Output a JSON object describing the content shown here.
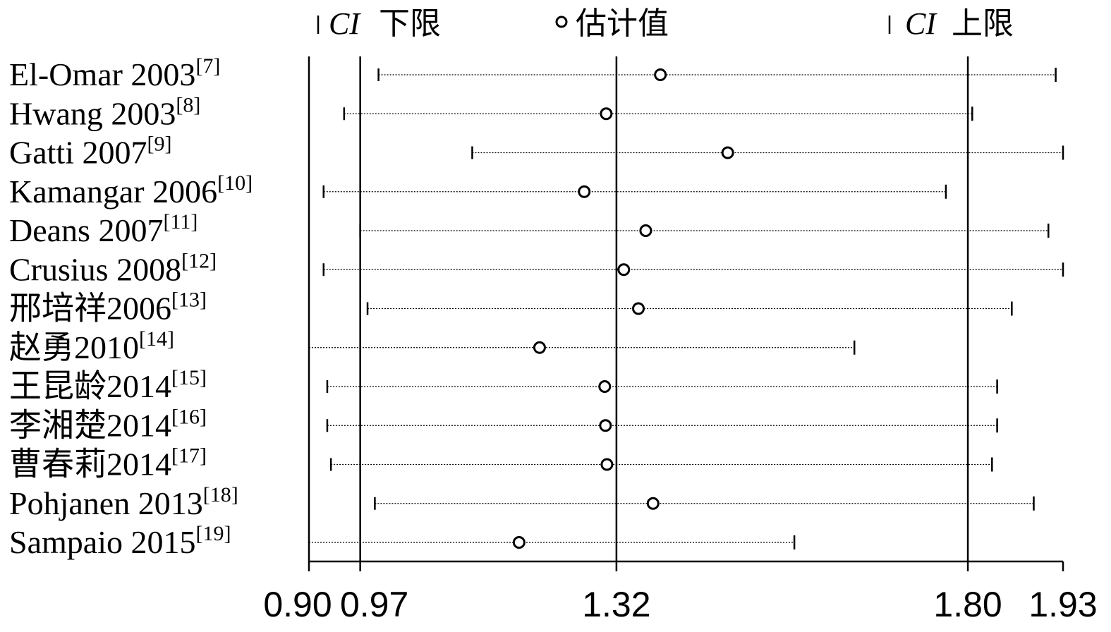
{
  "legend": {
    "lower_label": "下限",
    "lower_prefix": "CI",
    "estimate_label": "估计值",
    "upper_label": "上限",
    "upper_prefix": "CI"
  },
  "chart_data": {
    "type": "forest",
    "xlim": [
      0.9,
      1.93
    ],
    "xticks": [
      {
        "value": 0.9,
        "label": "0.90"
      },
      {
        "value": 0.97,
        "label": "0.97"
      },
      {
        "value": 1.32,
        "label": "1.32"
      },
      {
        "value": 1.8,
        "label": "1.80"
      },
      {
        "value": 1.93,
        "label": "1.93"
      }
    ],
    "reference_lines": [
      0.97,
      1.32,
      1.8
    ],
    "studies": [
      {
        "name": "El-Omar 2003",
        "ref": "[7]",
        "lower": 0.995,
        "estimate": 1.38,
        "upper": 1.92
      },
      {
        "name": "Hwang 2003",
        "ref": "[8]",
        "lower": 0.948,
        "estimate": 1.306,
        "upper": 1.806
      },
      {
        "name": "Gatti 2007",
        "ref": "[9]",
        "lower": 1.123,
        "estimate": 1.472,
        "upper": 1.93
      },
      {
        "name": "Kamangar 2006",
        "ref": "[10]",
        "lower": 0.92,
        "estimate": 1.276,
        "upper": 1.77
      },
      {
        "name": "Deans 2007",
        "ref": "[11]",
        "lower": 0.97,
        "estimate": 1.36,
        "upper": 1.91
      },
      {
        "name": "Crusius 2008",
        "ref": "[12]",
        "lower": 0.92,
        "estimate": 1.33,
        "upper": 1.93
      },
      {
        "name": "邢培祥2006",
        "ref": "[13]",
        "lower": 0.98,
        "estimate": 1.35,
        "upper": 1.86
      },
      {
        "name": "赵勇2010",
        "ref": "[14]",
        "lower": 0.9,
        "estimate": 1.215,
        "upper": 1.645
      },
      {
        "name": "王昆龄2014",
        "ref": "[15]",
        "lower": 0.925,
        "estimate": 1.304,
        "upper": 1.84
      },
      {
        "name": "李湘楚2014",
        "ref": "[16]",
        "lower": 0.925,
        "estimate": 1.305,
        "upper": 1.84
      },
      {
        "name": "曹春莉2014",
        "ref": "[17]",
        "lower": 0.93,
        "estimate": 1.307,
        "upper": 1.833
      },
      {
        "name": "Pohjanen 2013",
        "ref": "[18]",
        "lower": 0.99,
        "estimate": 1.37,
        "upper": 1.89
      },
      {
        "name": "Sampaio 2015",
        "ref": "[19]",
        "lower": 0.9,
        "estimate": 1.187,
        "upper": 1.563
      }
    ]
  }
}
